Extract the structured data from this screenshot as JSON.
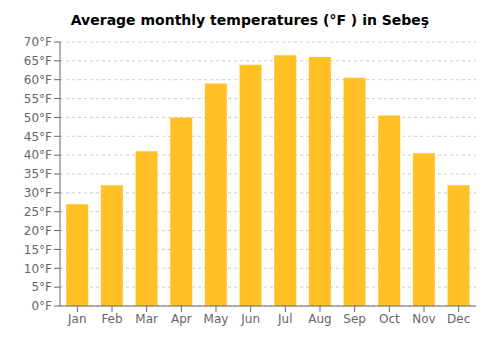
{
  "chart_data": {
    "type": "bar",
    "title": "Average monthly temperatures (°F ) in Sebeş",
    "categories": [
      "Jan",
      "Feb",
      "Mar",
      "Apr",
      "May",
      "Jun",
      "Jul",
      "Aug",
      "Sep",
      "Oct",
      "Nov",
      "Dec"
    ],
    "values": [
      27,
      32,
      41,
      50,
      59,
      64,
      66.5,
      66,
      60.5,
      50.5,
      40.5,
      32
    ],
    "color": "#FFC125",
    "ylim": [
      0,
      70
    ],
    "yticks": [
      {
        "value": 0,
        "label": "0°F"
      },
      {
        "value": 5,
        "label": "5°F"
      },
      {
        "value": 10,
        "label": "10°F"
      },
      {
        "value": 15,
        "label": "15°F"
      },
      {
        "value": 20,
        "label": "20°F"
      },
      {
        "value": 25,
        "label": "25°F"
      },
      {
        "value": 30,
        "label": "30°F"
      },
      {
        "value": 35,
        "label": "35°F"
      },
      {
        "value": 40,
        "label": "40°F"
      },
      {
        "value": 45,
        "label": "45°F"
      },
      {
        "value": 50,
        "label": "50°F"
      },
      {
        "value": 55,
        "label": "55°F"
      },
      {
        "value": 60,
        "label": "60°F"
      },
      {
        "value": 65,
        "label": "65°F"
      },
      {
        "value": 70,
        "label": "70°F"
      }
    ],
    "grid": true
  }
}
